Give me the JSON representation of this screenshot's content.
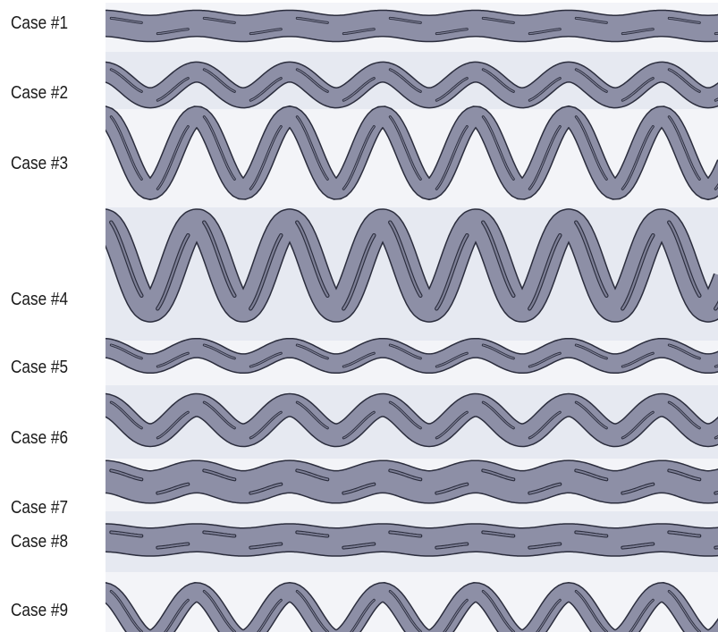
{
  "cases": [
    {
      "label": "Case #1",
      "amplitude": 0.06,
      "thickness": 0.95,
      "slot": "inner",
      "wall": "rounded"
    },
    {
      "label": "Case #2",
      "amplitude": 0.3,
      "thickness": 0.6,
      "slot": "inner",
      "wall": "rounded"
    },
    {
      "label": "Case #3",
      "amplitude": 0.85,
      "thickness": 0.6,
      "slot": "inner",
      "wall": "sharp"
    },
    {
      "label": "Case #4",
      "amplitude": 1.0,
      "thickness": 1.0,
      "slot": "wide",
      "wall": "rounded"
    },
    {
      "label": "Case #5",
      "amplitude": 0.18,
      "thickness": 0.55,
      "slot": "inner",
      "wall": "rounded"
    },
    {
      "label": "Case #6",
      "amplitude": 0.35,
      "thickness": 0.75,
      "slot": "inner",
      "wall": "rounded"
    },
    {
      "label": "Case #7",
      "amplitude": 0.12,
      "thickness": 1.3,
      "slot": "oval",
      "wall": "rounded"
    },
    {
      "label": "Case #8",
      "amplitude": 0.05,
      "thickness": 1.05,
      "slot": "oval",
      "wall": "rounded"
    },
    {
      "label": "Case #9",
      "amplitude": 0.55,
      "thickness": 0.55,
      "slot": "inner",
      "wall": "sharp"
    }
  ],
  "periods": 7,
  "colors": {
    "channel_fill": "#8d8fa6",
    "channel_stroke": "#2b2d3d",
    "background_light": "#f3f4f8",
    "background_dark": "#dfe2ec",
    "label": "#1a1a1a"
  }
}
